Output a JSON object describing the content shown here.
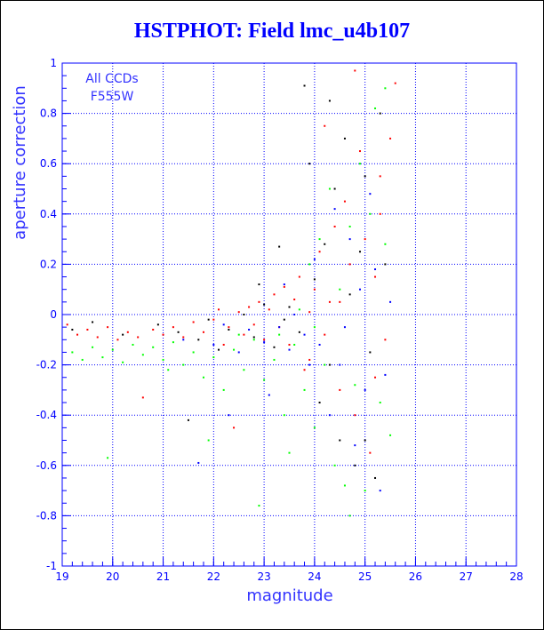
{
  "colors": {
    "title": "#0000ff",
    "axis": "#0000ff",
    "grid": "#0000ff",
    "label": "#3333ff",
    "series": [
      "#ff0000",
      "#000000",
      "#00ff00",
      "#0000ff"
    ]
  },
  "chart_data": {
    "type": "scatter",
    "title": "HSTPHOT: Field lmc_u4b107",
    "xlabel": "magnitude",
    "ylabel": "aperture correction",
    "xlim": [
      19,
      28
    ],
    "ylim": [
      -1,
      1
    ],
    "xticks": [
      "19",
      "20",
      "21",
      "22",
      "23",
      "24",
      "25",
      "26",
      "27",
      "28"
    ],
    "yticks": [
      "-1",
      "-0.8",
      "-0.6",
      "-0.4",
      "-0.2",
      "0",
      "0.2",
      "0.4",
      "0.6",
      "0.8",
      "1"
    ],
    "grid": true,
    "annotations": [
      "All CCDs",
      "F555W"
    ],
    "series": [
      {
        "color": "#ff0000",
        "points": [
          [
            19.1,
            -0.04
          ],
          [
            19.3,
            -0.08
          ],
          [
            19.5,
            -0.06
          ],
          [
            19.7,
            -0.09
          ],
          [
            19.9,
            -0.05
          ],
          [
            20.1,
            -0.1
          ],
          [
            20.3,
            -0.07
          ],
          [
            20.5,
            -0.09
          ],
          [
            20.6,
            -0.33
          ],
          [
            20.8,
            -0.06
          ],
          [
            21.0,
            -0.08
          ],
          [
            21.2,
            -0.05
          ],
          [
            21.4,
            -0.09
          ],
          [
            21.6,
            -0.03
          ],
          [
            21.8,
            -0.07
          ],
          [
            22.0,
            -0.02
          ],
          [
            22.1,
            0.02
          ],
          [
            22.2,
            -0.12
          ],
          [
            22.3,
            -0.05
          ],
          [
            22.4,
            -0.45
          ],
          [
            22.5,
            0.01
          ],
          [
            22.6,
            -0.08
          ],
          [
            22.7,
            0.03
          ],
          [
            22.8,
            -0.04
          ],
          [
            22.9,
            0.05
          ],
          [
            23.0,
            -0.1
          ],
          [
            23.1,
            0.02
          ],
          [
            23.2,
            0.08
          ],
          [
            23.3,
            -0.05
          ],
          [
            23.4,
            0.11
          ],
          [
            23.5,
            -0.12
          ],
          [
            23.6,
            0.06
          ],
          [
            23.7,
            0.15
          ],
          [
            23.8,
            -0.22
          ],
          [
            23.9,
            0.01
          ],
          [
            24.0,
            0.1
          ],
          [
            24.1,
            0.25
          ],
          [
            24.2,
            -0.08
          ],
          [
            24.3,
            0.05
          ],
          [
            24.4,
            0.35
          ],
          [
            24.5,
            -0.3
          ],
          [
            24.6,
            0.45
          ],
          [
            24.7,
            0.2
          ],
          [
            24.8,
            -0.4
          ],
          [
            24.9,
            0.65
          ],
          [
            25.0,
            0.3
          ],
          [
            25.1,
            -0.55
          ],
          [
            25.2,
            0.15
          ],
          [
            25.3,
            0.55
          ],
          [
            25.4,
            -0.1
          ],
          [
            25.5,
            0.7
          ],
          [
            25.6,
            0.92
          ],
          [
            24.2,
            0.75
          ],
          [
            24.8,
            0.97
          ],
          [
            25.3,
            0.4
          ],
          [
            24.5,
            0.05
          ],
          [
            23.9,
            -0.18
          ],
          [
            25.2,
            -0.25
          ]
        ]
      },
      {
        "color": "#000000",
        "points": [
          [
            19.2,
            -0.06
          ],
          [
            19.6,
            -0.03
          ],
          [
            20.2,
            -0.08
          ],
          [
            20.9,
            -0.04
          ],
          [
            21.3,
            -0.07
          ],
          [
            21.7,
            -0.1
          ],
          [
            21.9,
            -0.02
          ],
          [
            22.1,
            -0.14
          ],
          [
            22.3,
            -0.06
          ],
          [
            22.6,
            0.0
          ],
          [
            22.8,
            -0.09
          ],
          [
            23.0,
            0.04
          ],
          [
            23.2,
            -0.13
          ],
          [
            23.3,
            0.27
          ],
          [
            23.5,
            0.03
          ],
          [
            23.7,
            -0.07
          ],
          [
            23.8,
            0.91
          ],
          [
            23.9,
            0.6
          ],
          [
            24.0,
            0.14
          ],
          [
            24.1,
            -0.35
          ],
          [
            24.2,
            0.28
          ],
          [
            24.3,
            -0.2
          ],
          [
            24.4,
            0.5
          ],
          [
            24.5,
            -0.5
          ],
          [
            24.6,
            0.7
          ],
          [
            24.7,
            0.08
          ],
          [
            24.8,
            -0.6
          ],
          [
            24.9,
            0.25
          ],
          [
            25.0,
            0.55
          ],
          [
            25.1,
            -0.15
          ],
          [
            25.2,
            -0.65
          ],
          [
            25.3,
            0.8
          ],
          [
            25.4,
            0.2
          ],
          [
            23.4,
            -0.02
          ],
          [
            22.9,
            0.12
          ],
          [
            21.5,
            -0.42
          ],
          [
            24.3,
            0.85
          ],
          [
            25.0,
            -0.5
          ]
        ]
      },
      {
        "color": "#00ff00",
        "points": [
          [
            19.2,
            -0.15
          ],
          [
            19.4,
            -0.18
          ],
          [
            19.6,
            -0.13
          ],
          [
            19.8,
            -0.17
          ],
          [
            20.0,
            -0.14
          ],
          [
            20.2,
            -0.19
          ],
          [
            20.4,
            -0.12
          ],
          [
            20.6,
            -0.16
          ],
          [
            20.8,
            -0.13
          ],
          [
            21.0,
            -0.18
          ],
          [
            21.2,
            -0.11
          ],
          [
            21.4,
            -0.2
          ],
          [
            21.6,
            -0.15
          ],
          [
            21.8,
            -0.25
          ],
          [
            21.9,
            -0.5
          ],
          [
            22.0,
            -0.17
          ],
          [
            22.2,
            -0.3
          ],
          [
            22.4,
            -0.14
          ],
          [
            22.6,
            -0.22
          ],
          [
            22.8,
            -0.1
          ],
          [
            22.9,
            -0.76
          ],
          [
            23.0,
            -0.26
          ],
          [
            23.2,
            -0.18
          ],
          [
            23.4,
            -0.4
          ],
          [
            23.5,
            -0.55
          ],
          [
            23.6,
            -0.12
          ],
          [
            23.8,
            -0.3
          ],
          [
            23.9,
            0.2
          ],
          [
            24.0,
            -0.45
          ],
          [
            24.1,
            0.3
          ],
          [
            24.2,
            -0.2
          ],
          [
            24.3,
            0.5
          ],
          [
            24.4,
            -0.6
          ],
          [
            24.5,
            0.1
          ],
          [
            24.6,
            -0.68
          ],
          [
            24.7,
            0.35
          ],
          [
            24.8,
            -0.28
          ],
          [
            24.9,
            0.6
          ],
          [
            25.0,
            -0.7
          ],
          [
            25.1,
            0.4
          ],
          [
            25.2,
            0.82
          ],
          [
            25.3,
            -0.35
          ],
          [
            25.4,
            0.28
          ],
          [
            25.5,
            -0.48
          ],
          [
            24.0,
            -0.05
          ],
          [
            23.3,
            -0.08
          ],
          [
            19.9,
            -0.57
          ],
          [
            22.5,
            -0.08
          ],
          [
            24.7,
            -0.8
          ],
          [
            25.4,
            0.9
          ],
          [
            23.7,
            0.02
          ],
          [
            21.1,
            -0.22
          ]
        ]
      },
      {
        "color": "#0000ff",
        "points": [
          [
            21.4,
            -0.1
          ],
          [
            21.7,
            -0.59
          ],
          [
            22.0,
            -0.12
          ],
          [
            22.2,
            -0.04
          ],
          [
            22.5,
            -0.15
          ],
          [
            22.7,
            -0.06
          ],
          [
            23.0,
            -0.11
          ],
          [
            23.1,
            -0.32
          ],
          [
            23.3,
            -0.05
          ],
          [
            23.5,
            -0.14
          ],
          [
            23.6,
            0.0
          ],
          [
            23.8,
            -0.08
          ],
          [
            23.9,
            -0.2
          ],
          [
            24.0,
            0.22
          ],
          [
            24.1,
            -0.12
          ],
          [
            24.3,
            -0.4
          ],
          [
            24.4,
            0.42
          ],
          [
            24.6,
            -0.05
          ],
          [
            24.7,
            0.3
          ],
          [
            24.8,
            -0.52
          ],
          [
            24.9,
            0.1
          ],
          [
            25.0,
            -0.3
          ],
          [
            25.1,
            0.48
          ],
          [
            25.3,
            -0.7
          ],
          [
            25.4,
            -0.24
          ],
          [
            25.5,
            0.05
          ],
          [
            23.4,
            0.12
          ],
          [
            22.3,
            -0.4
          ],
          [
            24.5,
            -0.2
          ],
          [
            25.2,
            0.18
          ]
        ]
      }
    ]
  }
}
